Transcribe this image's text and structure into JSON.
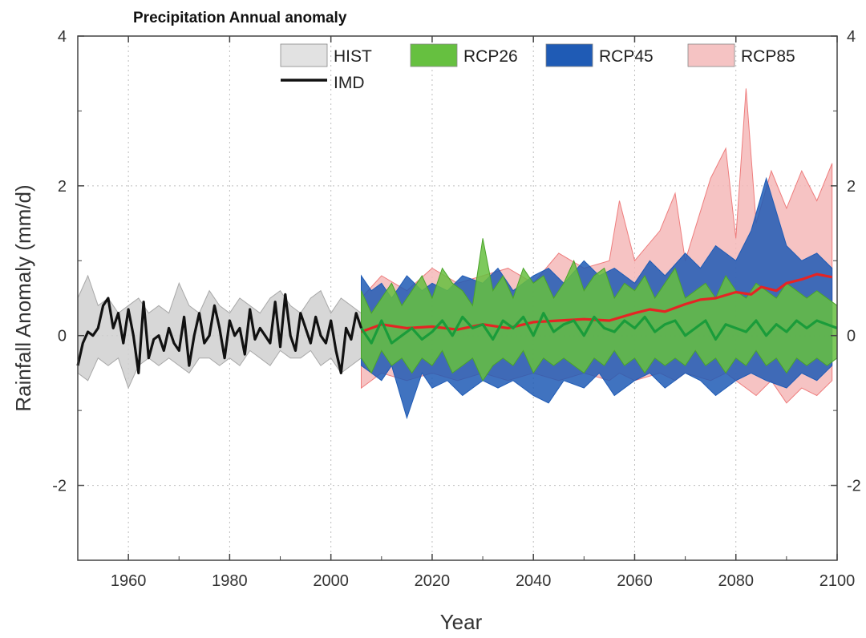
{
  "chart_data": {
    "type": "area",
    "title": "Precipitation Annual anomaly",
    "xlabel": "Year",
    "ylabel": "Rainfall Anomaly (mm/d)",
    "xlim": [
      1950,
      2100
    ],
    "ylim": [
      -3,
      4
    ],
    "x_ticks": [
      "1960",
      "1980",
      "2000",
      "2020",
      "2040",
      "2060",
      "2080",
      "2100"
    ],
    "y_ticks": [
      "4",
      "2",
      "0",
      "-2"
    ],
    "grid": true,
    "legend_position": "top",
    "series": [
      {
        "name": "HIST",
        "kind": "band",
        "fill": "#d0d0d0",
        "stroke": "#a8a8a8",
        "x": [
          1950,
          1952,
          1954,
          1956,
          1958,
          1960,
          1962,
          1964,
          1966,
          1968,
          1970,
          1972,
          1974,
          1976,
          1978,
          1980,
          1982,
          1984,
          1986,
          1988,
          1990,
          1992,
          1994,
          1996,
          1998,
          2000,
          2002,
          2004,
          2006
        ],
        "lower": [
          -0.5,
          -0.6,
          -0.3,
          -0.4,
          -0.3,
          -0.7,
          -0.4,
          -0.3,
          -0.4,
          -0.3,
          -0.4,
          -0.5,
          -0.3,
          -0.3,
          -0.4,
          -0.3,
          -0.4,
          -0.2,
          -0.3,
          -0.4,
          -0.2,
          -0.3,
          -0.3,
          -0.2,
          -0.4,
          -0.3,
          -0.5,
          -0.4,
          -0.3
        ],
        "upper": [
          0.5,
          0.8,
          0.4,
          0.5,
          0.3,
          0.4,
          0.5,
          0.3,
          0.4,
          0.3,
          0.7,
          0.4,
          0.3,
          0.6,
          0.4,
          0.3,
          0.5,
          0.4,
          0.3,
          0.5,
          0.6,
          0.4,
          0.3,
          0.5,
          0.6,
          0.3,
          0.5,
          0.4,
          0.3
        ]
      },
      {
        "name": "RCP85",
        "kind": "band",
        "fill": "#f5b8b8",
        "stroke": "#ee7d7d",
        "x": [
          2006,
          2010,
          2015,
          2020,
          2025,
          2030,
          2035,
          2040,
          2045,
          2050,
          2055,
          2057,
          2060,
          2065,
          2068,
          2070,
          2075,
          2078,
          2080,
          2082,
          2084,
          2087,
          2090,
          2093,
          2096,
          2099
        ],
        "lower": [
          -0.7,
          -0.5,
          -0.6,
          -0.5,
          -0.6,
          -0.5,
          -0.6,
          -0.5,
          -0.6,
          -0.5,
          -0.6,
          -0.5,
          -0.6,
          -0.5,
          -0.6,
          -0.5,
          -0.6,
          -0.5,
          -0.6,
          -0.7,
          -0.8,
          -0.6,
          -0.9,
          -0.7,
          -0.8,
          -0.6
        ],
        "upper": [
          0.5,
          0.8,
          0.6,
          0.9,
          0.7,
          0.8,
          0.9,
          0.7,
          1.1,
          0.9,
          1.0,
          1.8,
          1.0,
          1.4,
          1.9,
          1.0,
          2.1,
          2.5,
          1.3,
          3.3,
          1.5,
          2.2,
          1.7,
          2.2,
          1.8,
          2.3
        ]
      },
      {
        "name": "RCP45",
        "kind": "band",
        "fill": "#1f5bb5",
        "stroke": "#1f5bb5",
        "x": [
          2006,
          2008,
          2010,
          2012,
          2015,
          2018,
          2020,
          2023,
          2026,
          2030,
          2033,
          2036,
          2040,
          2043,
          2046,
          2050,
          2053,
          2056,
          2060,
          2063,
          2066,
          2070,
          2073,
          2076,
          2080,
          2083,
          2086,
          2090,
          2093,
          2096,
          2099
        ],
        "lower": [
          -0.4,
          -0.5,
          -0.6,
          -0.4,
          -1.1,
          -0.5,
          -0.7,
          -0.6,
          -0.8,
          -0.6,
          -0.7,
          -0.6,
          -0.8,
          -0.9,
          -0.6,
          -0.7,
          -0.5,
          -0.8,
          -0.6,
          -0.5,
          -0.7,
          -0.5,
          -0.6,
          -0.8,
          -0.6,
          -0.5,
          -0.6,
          -0.7,
          -0.5,
          -0.6,
          -0.4
        ],
        "upper": [
          0.8,
          0.6,
          0.7,
          0.5,
          0.8,
          0.6,
          0.7,
          0.6,
          0.8,
          0.7,
          0.9,
          0.6,
          0.8,
          0.9,
          0.7,
          1.0,
          0.8,
          0.9,
          0.7,
          1.0,
          0.8,
          1.1,
          0.9,
          1.2,
          1.0,
          1.4,
          2.1,
          1.2,
          1.0,
          1.1,
          0.9
        ]
      },
      {
        "name": "RCP26",
        "kind": "band",
        "fill": "#66c040",
        "stroke": "#4aa32a",
        "x": [
          2006,
          2008,
          2010,
          2012,
          2014,
          2016,
          2018,
          2020,
          2022,
          2024,
          2026,
          2028,
          2030,
          2032,
          2034,
          2036,
          2038,
          2040,
          2042,
          2044,
          2046,
          2048,
          2050,
          2052,
          2054,
          2056,
          2058,
          2060,
          2062,
          2064,
          2066,
          2068,
          2070,
          2072,
          2074,
          2076,
          2078,
          2080,
          2082,
          2084,
          2086,
          2088,
          2090,
          2092,
          2094,
          2096,
          2098,
          2100
        ],
        "lower": [
          -0.3,
          -0.5,
          -0.2,
          -0.4,
          -0.3,
          -0.5,
          -0.3,
          -0.4,
          -0.2,
          -0.5,
          -0.4,
          -0.3,
          -0.6,
          -0.4,
          -0.3,
          -0.4,
          -0.2,
          -0.5,
          -0.3,
          -0.4,
          -0.3,
          -0.4,
          -0.5,
          -0.3,
          -0.4,
          -0.2,
          -0.4,
          -0.3,
          -0.5,
          -0.3,
          -0.4,
          -0.3,
          -0.4,
          -0.2,
          -0.4,
          -0.3,
          -0.5,
          -0.3,
          -0.4,
          -0.2,
          -0.4,
          -0.3,
          -0.5,
          -0.3,
          -0.4,
          -0.3,
          -0.4,
          -0.3
        ],
        "upper": [
          0.6,
          0.3,
          0.5,
          0.7,
          0.4,
          0.6,
          0.8,
          0.5,
          0.9,
          0.7,
          0.6,
          0.4,
          1.3,
          0.6,
          0.8,
          0.5,
          0.9,
          0.7,
          0.8,
          0.5,
          0.7,
          1.0,
          0.6,
          0.8,
          0.9,
          0.5,
          0.7,
          0.6,
          0.8,
          0.5,
          0.7,
          0.9,
          0.5,
          0.6,
          0.7,
          0.5,
          0.8,
          0.6,
          0.5,
          0.7,
          0.6,
          0.5,
          0.7,
          0.6,
          0.5,
          0.6,
          0.5,
          0.4
        ]
      },
      {
        "name": "RCP85 mean",
        "kind": "line",
        "stroke": "#e52424",
        "x": [
          2006,
          2010,
          2015,
          2020,
          2025,
          2030,
          2035,
          2040,
          2045,
          2050,
          2055,
          2060,
          2063,
          2066,
          2070,
          2073,
          2076,
          2080,
          2083,
          2085,
          2088,
          2090,
          2093,
          2096,
          2099
        ],
        "values": [
          0.05,
          0.15,
          0.1,
          0.12,
          0.08,
          0.15,
          0.1,
          0.18,
          0.2,
          0.22,
          0.2,
          0.3,
          0.35,
          0.32,
          0.42,
          0.48,
          0.5,
          0.58,
          0.55,
          0.65,
          0.6,
          0.7,
          0.75,
          0.82,
          0.78
        ]
      },
      {
        "name": "RCP26 mean",
        "kind": "line",
        "stroke": "#1a9c3a",
        "x": [
          2006,
          2008,
          2010,
          2012,
          2014,
          2016,
          2018,
          2020,
          2022,
          2024,
          2026,
          2028,
          2030,
          2032,
          2034,
          2036,
          2038,
          2040,
          2042,
          2044,
          2046,
          2048,
          2050,
          2052,
          2054,
          2056,
          2058,
          2060,
          2062,
          2064,
          2066,
          2068,
          2070,
          2072,
          2074,
          2076,
          2078,
          2080,
          2082,
          2084,
          2086,
          2088,
          2090,
          2092,
          2094,
          2096,
          2098,
          2100
        ],
        "values": [
          0.1,
          -0.1,
          0.2,
          -0.1,
          0.0,
          0.1,
          -0.05,
          0.05,
          0.2,
          0.0,
          0.25,
          0.1,
          0.15,
          -0.05,
          0.2,
          0.1,
          0.25,
          0.0,
          0.3,
          0.05,
          0.15,
          0.2,
          0.0,
          0.25,
          0.1,
          0.05,
          0.2,
          0.1,
          0.25,
          0.05,
          0.15,
          0.2,
          0.0,
          0.1,
          0.2,
          -0.05,
          0.15,
          0.1,
          0.05,
          0.2,
          0.0,
          0.15,
          0.05,
          0.2,
          0.1,
          0.2,
          0.15,
          0.1
        ]
      },
      {
        "name": "IMD",
        "kind": "line",
        "stroke": "#111111",
        "x": [
          1950,
          1951,
          1952,
          1953,
          1954,
          1955,
          1956,
          1957,
          1958,
          1959,
          1960,
          1961,
          1962,
          1963,
          1964,
          1965,
          1966,
          1967,
          1968,
          1969,
          1970,
          1971,
          1972,
          1973,
          1974,
          1975,
          1976,
          1977,
          1978,
          1979,
          1980,
          1981,
          1982,
          1983,
          1984,
          1985,
          1986,
          1987,
          1988,
          1989,
          1990,
          1991,
          1992,
          1993,
          1994,
          1995,
          1996,
          1997,
          1998,
          1999,
          2000,
          2001,
          2002,
          2003,
          2004,
          2005,
          2006
        ],
        "values": [
          -0.4,
          -0.1,
          0.05,
          0.0,
          0.1,
          0.4,
          0.5,
          0.1,
          0.3,
          -0.1,
          0.35,
          0.0,
          -0.5,
          0.45,
          -0.3,
          -0.05,
          0.0,
          -0.2,
          0.1,
          -0.1,
          -0.2,
          0.25,
          -0.4,
          0.0,
          0.3,
          -0.1,
          0.0,
          0.4,
          0.1,
          -0.3,
          0.2,
          0.0,
          0.1,
          -0.25,
          0.35,
          -0.05,
          0.1,
          0.0,
          -0.1,
          0.45,
          -0.15,
          0.55,
          0.0,
          -0.2,
          0.3,
          0.1,
          -0.1,
          0.25,
          0.0,
          -0.1,
          0.2,
          -0.2,
          -0.5,
          0.1,
          -0.05,
          0.3,
          0.1
        ]
      }
    ],
    "legend": [
      {
        "label": "HIST",
        "swatch": "#e2e2e2",
        "style": "box"
      },
      {
        "label": "RCP26",
        "swatch": "#66c040",
        "style": "box"
      },
      {
        "label": "RCP45",
        "swatch": "#1f5bb5",
        "style": "box"
      },
      {
        "label": "RCP85",
        "swatch": "#f5c3c3",
        "style": "box"
      },
      {
        "label": "IMD",
        "swatch": "#111111",
        "style": "line"
      }
    ]
  }
}
